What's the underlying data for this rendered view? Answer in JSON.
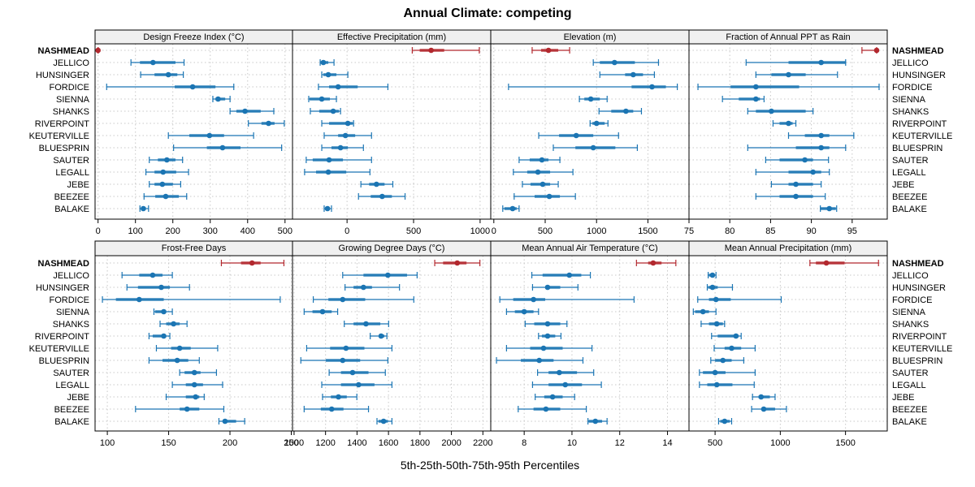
{
  "chart_data": {
    "type": "dotplot",
    "title": "Annual Climate: competing",
    "xlabel": "5th-25th-50th-75th-95th Percentiles",
    "categories": [
      "NASHMEAD",
      "JELLICO",
      "HUNSINGER",
      "FORDICE",
      "SIENNA",
      "SHANKS",
      "RIVERPOINT",
      "KEUTERVILLE",
      "BLUESPRIN",
      "SAUTER",
      "LEGALL",
      "JEBE",
      "BEEZEE",
      "BALAKE"
    ],
    "highlight_category": "NASHMEAD",
    "colors": {
      "highlight": "#b2282e",
      "series": "#1b75b3",
      "grid": "#c8c8c8",
      "strip_bg": "#f0f0f0"
    },
    "grid": true,
    "panels": [
      {
        "title": "Design Freeze Index (°C)",
        "xlim": [
          -8,
          520
        ],
        "ticks": [
          0,
          100,
          200,
          300,
          400,
          500
        ],
        "tick_labels": [
          "0",
          "100",
          "200",
          "300",
          "400",
          "500"
        ],
        "values": [
          [
            0,
            0,
            0,
            0,
            0
          ],
          [
            88,
            112,
            147,
            207,
            230
          ],
          [
            114,
            151,
            188,
            212,
            228
          ],
          [
            23,
            205,
            253,
            314,
            363
          ],
          [
            307,
            314,
            321,
            340,
            353
          ],
          [
            353,
            370,
            393,
            435,
            470
          ],
          [
            402,
            437,
            456,
            472,
            498
          ],
          [
            188,
            244,
            298,
            337,
            416
          ],
          [
            202,
            291,
            333,
            381,
            491
          ],
          [
            137,
            160,
            184,
            207,
            226
          ],
          [
            128,
            151,
            174,
            209,
            242
          ],
          [
            137,
            151,
            172,
            200,
            221
          ],
          [
            123,
            153,
            181,
            216,
            237
          ],
          [
            112,
            116,
            121,
            128,
            135
          ]
        ]
      },
      {
        "title": "Effective Precipitation (mm)",
        "xlim": [
          -410,
          1080
        ],
        "ticks": [
          0,
          500,
          1000
        ],
        "tick_labels": [
          "0",
          "500",
          "1000"
        ],
        "values": [
          [
            490,
            546,
            632,
            730,
            994
          ],
          [
            -202,
            -202,
            -178,
            -141,
            -98
          ],
          [
            -190,
            -178,
            -141,
            -80,
            6
          ],
          [
            -215,
            -135,
            -67,
            80,
            307
          ],
          [
            -288,
            -282,
            -190,
            -129,
            -80
          ],
          [
            -276,
            -209,
            -104,
            -61,
            -49
          ],
          [
            -190,
            -135,
            6,
            43,
            49
          ],
          [
            -172,
            -67,
            -12,
            61,
            184
          ],
          [
            -190,
            -117,
            -49,
            6,
            123
          ],
          [
            -307,
            -258,
            -135,
            -31,
            184
          ],
          [
            -319,
            -233,
            -141,
            -6,
            172
          ],
          [
            104,
            166,
            221,
            282,
            344
          ],
          [
            86,
            178,
            264,
            337,
            436
          ],
          [
            -172,
            -166,
            -147,
            -129,
            -117
          ]
        ]
      },
      {
        "title": "Elevation (m)",
        "xlim": [
          -30,
          1900
        ],
        "ticks": [
          0,
          500,
          1000,
          1500
        ],
        "tick_labels": [
          "0",
          "500",
          "1000",
          "1500"
        ],
        "values": [
          [
            373,
            460,
            532,
            627,
            738
          ],
          [
            968,
            1032,
            1175,
            1373,
            1603
          ],
          [
            1032,
            1278,
            1357,
            1452,
            1563
          ],
          [
            143,
            1341,
            1540,
            1675,
            1786
          ],
          [
            833,
            881,
            944,
            1032,
            1103
          ],
          [
            1024,
            1143,
            1286,
            1357,
            1437
          ],
          [
            937,
            960,
            1000,
            1079,
            1111
          ],
          [
            437,
            635,
            802,
            968,
            1214
          ],
          [
            579,
            794,
            968,
            1183,
            1397
          ],
          [
            246,
            349,
            468,
            532,
            643
          ],
          [
            190,
            325,
            429,
            548,
            770
          ],
          [
            278,
            357,
            476,
            548,
            627
          ],
          [
            198,
            397,
            540,
            643,
            794
          ],
          [
            87,
            103,
            183,
            222,
            246
          ]
        ]
      },
      {
        "title": "Fraction of Annual PPT as Rain",
        "xlim": [
          75.0,
          99.3
        ],
        "ticks": [
          75,
          80,
          85,
          90,
          95
        ],
        "tick_labels": [
          "75",
          "80",
          "85",
          "90",
          "95"
        ],
        "values": [
          [
            96.2,
            97.9,
            98.0,
            98.0,
            98.0
          ],
          [
            82.0,
            87.2,
            91.2,
            94.2,
            94.2
          ],
          [
            83.2,
            85.1,
            87.2,
            89.3,
            93.2
          ],
          [
            76.1,
            80.1,
            83.2,
            88.5,
            98.3
          ],
          [
            79.1,
            81.1,
            83.2,
            83.7,
            84.2
          ],
          [
            82.2,
            83.2,
            85.1,
            89.3,
            90.2
          ],
          [
            85.3,
            86.1,
            87.2,
            87.7,
            88.1
          ],
          [
            87.2,
            89.2,
            91.2,
            92.2,
            95.2
          ],
          [
            82.2,
            88.1,
            91.2,
            92.2,
            94.2
          ],
          [
            84.4,
            86.1,
            89.2,
            90.2,
            92.1
          ],
          [
            83.2,
            87.2,
            90.2,
            91.2,
            92.2
          ],
          [
            85.1,
            87.2,
            88.1,
            90.2,
            91.2
          ],
          [
            83.2,
            86.1,
            88.1,
            90.2,
            91.7
          ],
          [
            91.1,
            91.1,
            92.2,
            93.0,
            93.1
          ]
        ]
      },
      {
        "title": "Frost-Free Days",
        "xlim": [
          90,
          251
        ],
        "ticks": [
          100,
          150,
          200,
          250
        ],
        "tick_labels": [
          "100",
          "150",
          "200",
          "250"
        ],
        "values": [
          [
            193,
            209,
            218,
            225,
            244
          ],
          [
            112,
            126,
            137,
            145,
            153
          ],
          [
            116,
            125,
            144,
            151,
            167
          ],
          [
            96,
            107,
            126,
            146,
            241
          ],
          [
            138,
            139,
            146,
            148,
            153
          ],
          [
            143,
            148,
            154,
            159,
            165
          ],
          [
            134,
            137,
            146,
            148,
            151
          ],
          [
            140,
            152,
            159,
            168,
            190
          ],
          [
            134,
            145,
            157,
            166,
            175
          ],
          [
            159,
            163,
            171,
            176,
            189
          ],
          [
            153,
            164,
            171,
            178,
            194
          ],
          [
            148,
            164,
            172,
            175,
            179
          ],
          [
            123,
            159,
            165,
            175,
            195
          ],
          [
            191,
            194,
            196,
            205,
            212
          ]
        ]
      },
      {
        "title": "Growing Degree Days (°C)",
        "xlim": [
          990,
          2250
        ],
        "ticks": [
          1000,
          1200,
          1400,
          1600,
          1800,
          2000,
          2200
        ],
        "tick_labels": [
          "1000",
          "1200",
          "1400",
          "1600",
          "1800",
          "2000",
          "2200"
        ],
        "values": [
          [
            1894,
            1947,
            2037,
            2096,
            2181
          ],
          [
            1309,
            1441,
            1596,
            1718,
            1782
          ],
          [
            1324,
            1378,
            1441,
            1495,
            1670
          ],
          [
            1122,
            1218,
            1309,
            1452,
            1761
          ],
          [
            1064,
            1117,
            1181,
            1239,
            1277
          ],
          [
            1319,
            1378,
            1457,
            1548,
            1601
          ],
          [
            1484,
            1543,
            1553,
            1574,
            1590
          ],
          [
            1080,
            1229,
            1330,
            1447,
            1622
          ],
          [
            1043,
            1202,
            1309,
            1420,
            1596
          ],
          [
            1223,
            1298,
            1372,
            1473,
            1580
          ],
          [
            1176,
            1298,
            1410,
            1511,
            1622
          ],
          [
            1181,
            1234,
            1282,
            1335,
            1399
          ],
          [
            1064,
            1170,
            1239,
            1314,
            1473
          ],
          [
            1527,
            1537,
            1569,
            1596,
            1622
          ]
        ]
      },
      {
        "title": "Mean Annual Air Temperature (°C)",
        "xlim": [
          6.6,
          14.9
        ],
        "ticks": [
          8,
          10,
          12,
          14
        ],
        "tick_labels": [
          "8",
          "10",
          "12",
          "14"
        ],
        "values": [
          [
            12.7,
            13.19,
            13.4,
            13.75,
            14.35
          ],
          [
            8.32,
            8.77,
            9.89,
            10.39,
            10.77
          ],
          [
            8.35,
            8.88,
            8.98,
            9.51,
            10.25
          ],
          [
            6.98,
            7.54,
            8.39,
            8.88,
            12.6
          ],
          [
            7.26,
            7.61,
            8.0,
            8.39,
            8.6
          ],
          [
            8.04,
            8.42,
            8.98,
            9.51,
            9.79
          ],
          [
            8.6,
            8.74,
            8.98,
            9.3,
            9.54
          ],
          [
            7.26,
            8.25,
            8.81,
            9.61,
            10.84
          ],
          [
            6.84,
            7.86,
            8.63,
            9.23,
            10.46
          ],
          [
            8.56,
            9.02,
            9.47,
            10.21,
            10.91
          ],
          [
            8.35,
            9.02,
            9.72,
            10.42,
            11.23
          ],
          [
            8.46,
            8.84,
            9.19,
            9.61,
            10.11
          ],
          [
            7.75,
            8.39,
            8.91,
            9.51,
            10.6
          ],
          [
            10.67,
            10.7,
            10.98,
            11.26,
            11.47
          ]
        ]
      },
      {
        "title": "Mean Annual Precipitation (mm)",
        "xlim": [
          300,
          1820
        ],
        "ticks": [
          500,
          1000,
          1500
        ],
        "tick_labels": [
          "500",
          "1000",
          "1500"
        ],
        "values": [
          [
            1227,
            1273,
            1353,
            1493,
            1753
          ],
          [
            447,
            453,
            480,
            493,
            507
          ],
          [
            440,
            447,
            480,
            520,
            633
          ],
          [
            367,
            453,
            507,
            620,
            1007
          ],
          [
            333,
            347,
            407,
            453,
            507
          ],
          [
            393,
            453,
            513,
            560,
            573
          ],
          [
            473,
            520,
            660,
            680,
            700
          ],
          [
            493,
            573,
            627,
            700,
            807
          ],
          [
            467,
            500,
            560,
            627,
            720
          ],
          [
            380,
            407,
            500,
            580,
            807
          ],
          [
            380,
            440,
            513,
            633,
            800
          ],
          [
            787,
            833,
            853,
            920,
            960
          ],
          [
            780,
            860,
            873,
            960,
            1047
          ],
          [
            527,
            540,
            573,
            613,
            627
          ]
        ]
      }
    ]
  }
}
